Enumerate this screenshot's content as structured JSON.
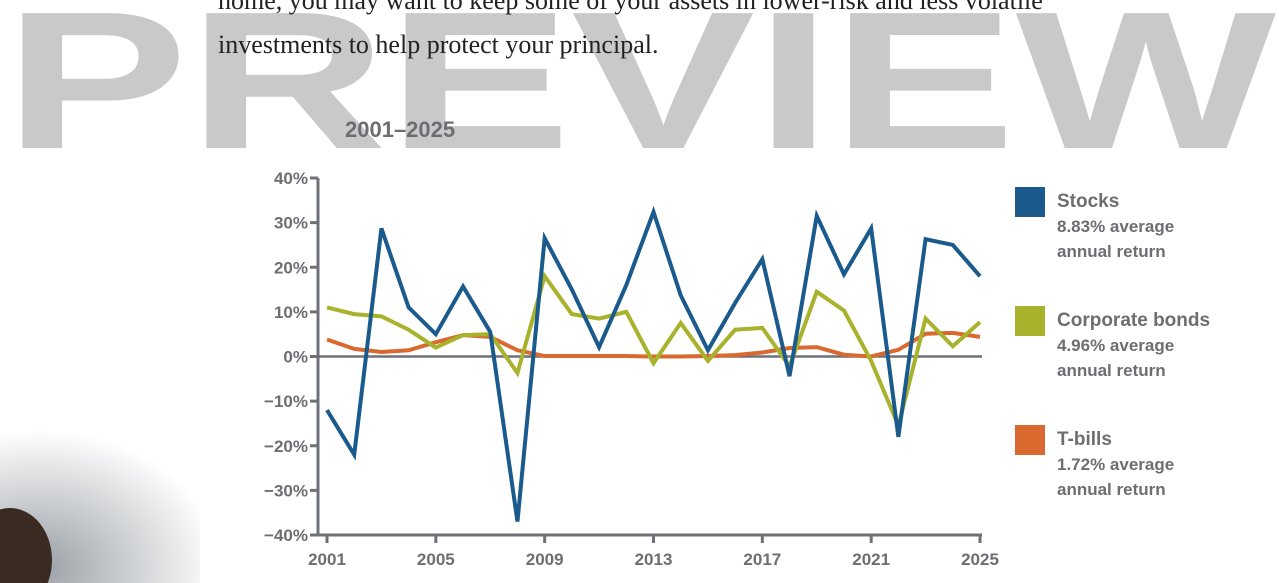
{
  "watermark": "PREVIEW",
  "body_text": [
    "home, you may want to keep some of your assets in lower-risk and less volatile",
    "investments to help protect your principal."
  ],
  "chart_data": {
    "type": "line",
    "title": "2001–2025",
    "x": [
      2001,
      2002,
      2003,
      2004,
      2005,
      2006,
      2007,
      2008,
      2009,
      2010,
      2011,
      2012,
      2013,
      2014,
      2015,
      2016,
      2017,
      2018,
      2019,
      2020,
      2021,
      2022,
      2023,
      2024,
      2025
    ],
    "xlim": [
      2001,
      2025
    ],
    "xticks": [
      2001,
      2005,
      2009,
      2013,
      2017,
      2021,
      2025
    ],
    "ylim": [
      -40,
      40
    ],
    "yticks": [
      {
        "value": 40,
        "label": "40%"
      },
      {
        "value": 30,
        "label": "30%"
      },
      {
        "value": 20,
        "label": "20%"
      },
      {
        "value": 10,
        "label": "10%"
      },
      {
        "value": 0,
        "label": "0%"
      },
      {
        "value": -10,
        "label": "−10%"
      },
      {
        "value": -20,
        "label": "−20%"
      },
      {
        "value": -30,
        "label": "−30%"
      },
      {
        "value": -40,
        "label": "−40%"
      }
    ],
    "legend": "right",
    "series": [
      {
        "name": "Stocks",
        "description": "8.83% average annual return",
        "color": "#1a5a8c",
        "values": [
          -12,
          -22,
          28.7,
          11,
          5,
          15.7,
          5.5,
          -37,
          26.5,
          15,
          2.1,
          16,
          32.4,
          13.7,
          1.4,
          12,
          21.8,
          -4.4,
          31.5,
          18.4,
          28.7,
          -18,
          26.3,
          25,
          18
        ]
      },
      {
        "name": "Corporate bonds",
        "description": "4.96% average annual return",
        "color": "#a8b22d",
        "values": [
          11,
          9.5,
          9,
          6,
          2,
          4.8,
          5,
          -3.7,
          18,
          9.5,
          8.5,
          10,
          -1.5,
          7.5,
          -1,
          6,
          6.4,
          -2.2,
          14.5,
          10.3,
          -1,
          -15.5,
          8.5,
          2.3,
          7.7
        ]
      },
      {
        "name": "T-bills",
        "description": "1.72% average annual return",
        "color": "#d9692f",
        "values": [
          3.8,
          1.7,
          1,
          1.4,
          3.2,
          4.8,
          4.4,
          1.4,
          0.1,
          0.1,
          0.1,
          0.1,
          0,
          0,
          0.1,
          0.3,
          0.9,
          1.9,
          2.1,
          0.4,
          0,
          1.5,
          5.1,
          5.3,
          4.4
        ]
      }
    ]
  }
}
